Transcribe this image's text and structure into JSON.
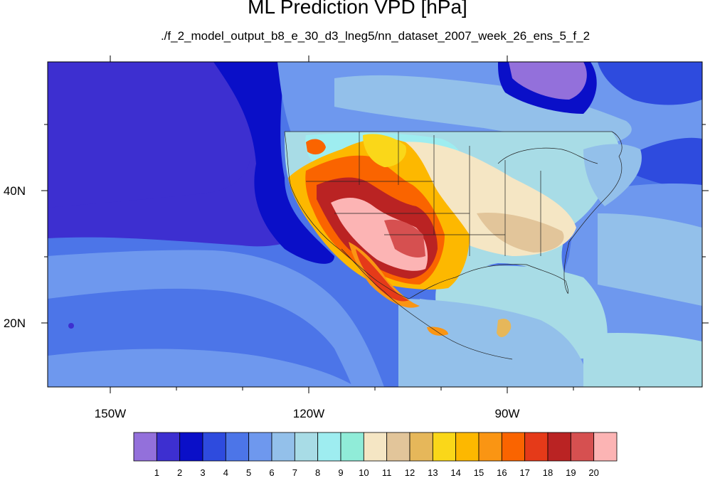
{
  "title": "ML Prediction VPD [hPa]",
  "subtitle": "./f_2_model_output_b8_e_30_d3_lneg5/nn_dataset_2007_week_26_ens_5_f_2",
  "map": {
    "region": "North America / Eastern Pacific",
    "projection": "cylindrical equidistant",
    "lon_range": [
      -160,
      -61
    ],
    "lat_range": [
      10,
      59
    ],
    "x_ticks": [
      "150W",
      "120W",
      "90W"
    ],
    "y_ticks": [
      "40N",
      "20N"
    ],
    "features": [
      "coastlines",
      "US state boundaries",
      "national borders"
    ]
  },
  "colorbar": {
    "labels": [
      "1",
      "2",
      "3",
      "4",
      "5",
      "6",
      "7",
      "8",
      "9",
      "10",
      "11",
      "12",
      "13",
      "14",
      "15",
      "16",
      "17",
      "18",
      "19",
      "20"
    ],
    "colors": [
      "#9370DB",
      "#3D2FD0",
      "#0A0FC8",
      "#2E4BDE",
      "#4C75E8",
      "#6E98EE",
      "#93C0EA",
      "#A8DCE6",
      "#9EEDF0",
      "#90ECD8",
      "#F5E6C4",
      "#E2C59A",
      "#E6B75A",
      "#FAD719",
      "#FDB800",
      "#FA9513",
      "#FA6400",
      "#E53A19",
      "#BA2323",
      "#D65050",
      "#FCB4B4"
    ]
  }
}
